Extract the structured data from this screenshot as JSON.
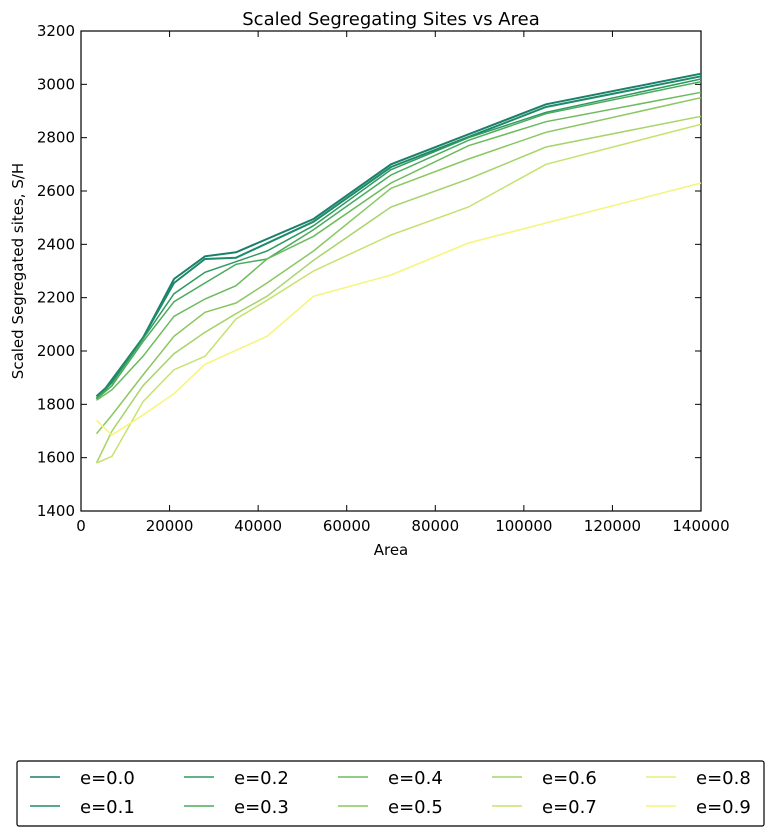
{
  "chart_data": {
    "type": "line",
    "title": "Scaled Segregating Sites vs Area",
    "xlabel": "Area",
    "ylabel": "Scaled Segregated sites, S/H",
    "xlim": [
      0,
      140000
    ],
    "ylim": [
      1400,
      3200
    ],
    "xticks": [
      0,
      20000,
      40000,
      60000,
      80000,
      100000,
      120000,
      140000
    ],
    "yticks": [
      1400,
      1600,
      1800,
      2000,
      2200,
      2400,
      2600,
      2800,
      3000,
      3200
    ],
    "grid": false,
    "legend_position": "bottom",
    "legend_columns": 5,
    "series": [
      {
        "name": "e=0.0",
        "color": "#1b7f6b",
        "x": [
          3500,
          5500,
          14000,
          21000,
          28000,
          35000,
          52500,
          70000,
          105000,
          140000
        ],
        "y": [
          1830,
          1860,
          2050,
          2270,
          2355,
          2370,
          2495,
          2700,
          2925,
          3040
        ]
      },
      {
        "name": "e=0.1",
        "color": "#1f8a67",
        "x": [
          3500,
          5500,
          14000,
          21000,
          28000,
          35000,
          52500,
          70000,
          105000,
          140000
        ],
        "y": [
          1820,
          1855,
          2050,
          2255,
          2345,
          2350,
          2485,
          2690,
          2915,
          3030
        ]
      },
      {
        "name": "e=0.2",
        "color": "#2e9a60",
        "x": [
          3500,
          7000,
          14000,
          21000,
          28000,
          35000,
          42000,
          52500,
          70000,
          87500,
          105000,
          140000
        ],
        "y": [
          1825,
          1880,
          2045,
          2215,
          2295,
          2335,
          2375,
          2470,
          2680,
          2800,
          2895,
          3020
        ]
      },
      {
        "name": "e=0.3",
        "color": "#4aab5c",
        "x": [
          3500,
          7000,
          14000,
          21000,
          28000,
          35000,
          42000,
          52500,
          70000,
          87500,
          105000,
          140000
        ],
        "y": [
          1820,
          1870,
          2035,
          2185,
          2255,
          2325,
          2345,
          2455,
          2660,
          2790,
          2890,
          3010
        ]
      },
      {
        "name": "e=0.4",
        "color": "#6bbb5d",
        "x": [
          3500,
          7000,
          14000,
          21000,
          28000,
          35000,
          42000,
          52500,
          70000,
          87500,
          105000,
          140000
        ],
        "y": [
          1815,
          1855,
          1980,
          2130,
          2195,
          2245,
          2345,
          2430,
          2630,
          2770,
          2860,
          2970
        ]
      },
      {
        "name": "e=0.5",
        "color": "#8ac760",
        "x": [
          3500,
          7000,
          14000,
          21000,
          28000,
          35000,
          42000,
          52500,
          70000,
          87500,
          105000,
          140000
        ],
        "y": [
          1690,
          1760,
          1910,
          2055,
          2145,
          2180,
          2255,
          2375,
          2610,
          2720,
          2820,
          2950
        ]
      },
      {
        "name": "e=0.6",
        "color": "#a6d46a",
        "x": [
          3500,
          7000,
          14000,
          21000,
          28000,
          35000,
          42000,
          52500,
          70000,
          87500,
          105000,
          140000
        ],
        "y": [
          1580,
          1700,
          1870,
          1990,
          2070,
          2140,
          2205,
          2340,
          2540,
          2645,
          2765,
          2880
        ]
      },
      {
        "name": "e=0.7",
        "color": "#c6e26e",
        "x": [
          3500,
          7000,
          14000,
          21000,
          28000,
          35000,
          42000,
          52500,
          70000,
          87500,
          105000,
          140000
        ],
        "y": [
          1580,
          1605,
          1810,
          1930,
          1980,
          2120,
          2190,
          2300,
          2435,
          2540,
          2700,
          2850
        ]
      },
      {
        "name": "e=0.8",
        "color": "#e5f07a",
        "x": [],
        "y": []
      },
      {
        "name": "e=0.9",
        "color": "#f5f579",
        "x": [
          3500,
          7000,
          14000,
          21000,
          28000,
          42000,
          52500,
          70000,
          87500,
          140000
        ],
        "y": [
          1740,
          1685,
          1760,
          1840,
          1950,
          2055,
          2205,
          2285,
          2405,
          2630
        ]
      }
    ]
  }
}
